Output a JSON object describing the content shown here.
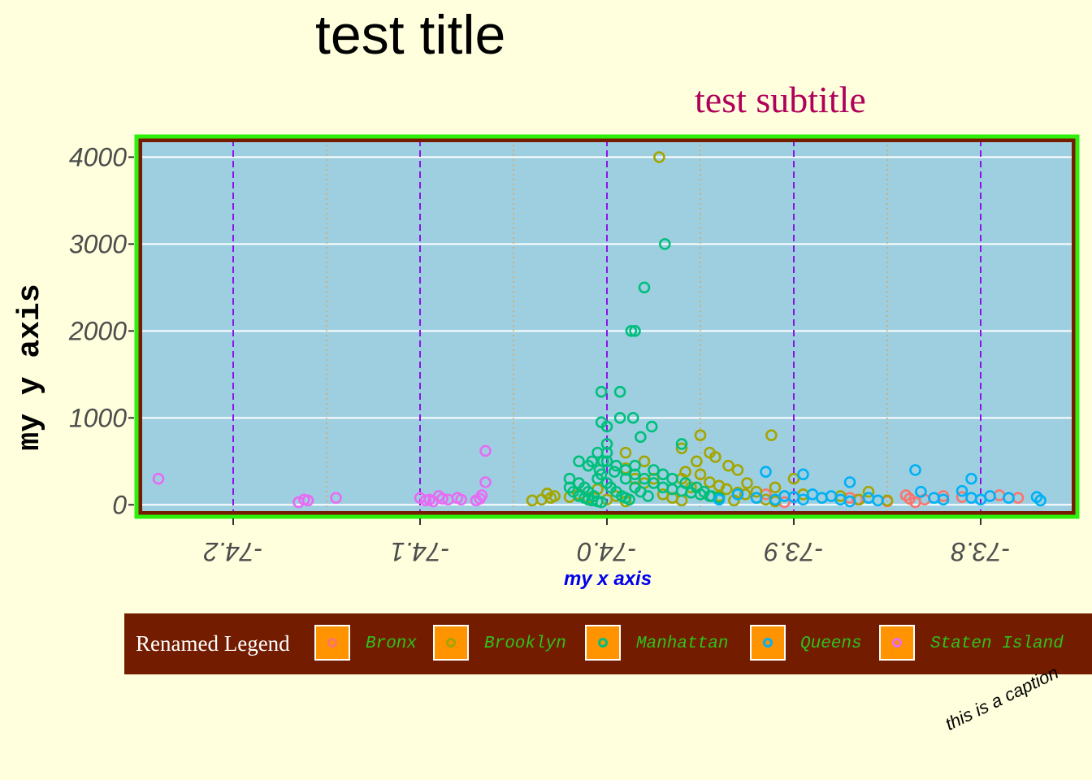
{
  "chart_data": {
    "type": "scatter",
    "title": "test title",
    "subtitle": "test subtitle",
    "xlabel": "my x axis",
    "ylabel": "my y axis",
    "caption": "this is a caption",
    "xlim": [
      -74.25,
      -73.75
    ],
    "ylim": [
      -100,
      4200
    ],
    "x_ticks": [
      -74.2,
      -74.1,
      -74.0,
      -73.9,
      -73.8
    ],
    "x_tick_labels": [
      "-74.2",
      "-74.1",
      "-74.0",
      "-73.9",
      "-73.8"
    ],
    "y_ticks": [
      0,
      1000,
      2000,
      3000,
      4000
    ],
    "y_tick_labels": [
      "0",
      "1000",
      "2000",
      "3000",
      "4000"
    ],
    "grid": true,
    "legend": {
      "title": "Renamed Legend",
      "position": "bottom"
    },
    "series": [
      {
        "name": "Bronx",
        "color": "#f8766d",
        "points": [
          [
            -73.91,
            40
          ],
          [
            -73.9,
            90
          ],
          [
            -73.87,
            80
          ],
          [
            -73.866,
            60
          ],
          [
            -73.85,
            40
          ],
          [
            -73.84,
            110
          ],
          [
            -73.838,
            70
          ],
          [
            -73.835,
            30
          ],
          [
            -73.83,
            60
          ],
          [
            -73.82,
            100
          ],
          [
            -73.81,
            90
          ],
          [
            -73.79,
            110
          ],
          [
            -73.78,
            80
          ],
          [
            -73.915,
            120
          ],
          [
            -73.905,
            30
          ]
        ]
      },
      {
        "name": "Brooklyn",
        "color": "#a3a500",
        "points": [
          [
            -73.972,
            4000
          ],
          [
            -73.95,
            800
          ],
          [
            -73.912,
            800
          ],
          [
            -73.96,
            650
          ],
          [
            -73.945,
            600
          ],
          [
            -73.952,
            500
          ],
          [
            -73.942,
            550
          ],
          [
            -73.935,
            450
          ],
          [
            -73.93,
            400
          ],
          [
            -73.98,
            500
          ],
          [
            -73.99,
            600
          ],
          [
            -73.975,
            300
          ],
          [
            -73.96,
            300
          ],
          [
            -73.955,
            200
          ],
          [
            -73.948,
            150
          ],
          [
            -73.94,
            100
          ],
          [
            -73.932,
            50
          ],
          [
            -73.925,
            250
          ],
          [
            -73.92,
            150
          ],
          [
            -73.91,
            200
          ],
          [
            -73.905,
            100
          ],
          [
            -73.9,
            300
          ],
          [
            -73.895,
            120
          ],
          [
            -73.885,
            80
          ],
          [
            -73.875,
            100
          ],
          [
            -73.865,
            60
          ],
          [
            -73.86,
            150
          ],
          [
            -73.85,
            50
          ],
          [
            -74.03,
            80
          ],
          [
            -74.032,
            130
          ],
          [
            -74.028,
            100
          ],
          [
            -74.035,
            60
          ],
          [
            -74.02,
            90
          ],
          [
            -74.015,
            120
          ],
          [
            -74.01,
            80
          ],
          [
            -74.005,
            180
          ],
          [
            -74.0,
            60
          ],
          [
            -73.995,
            100
          ],
          [
            -73.99,
            40
          ],
          [
            -73.985,
            200
          ],
          [
            -73.97,
            120
          ],
          [
            -73.965,
            80
          ],
          [
            -73.96,
            50
          ],
          [
            -73.958,
            380
          ],
          [
            -73.95,
            350
          ],
          [
            -73.945,
            260
          ],
          [
            -73.94,
            220
          ],
          [
            -73.936,
            180
          ],
          [
            -73.93,
            140
          ],
          [
            -73.926,
            120
          ],
          [
            -73.92,
            80
          ],
          [
            -73.915,
            60
          ],
          [
            -73.91,
            40
          ],
          [
            -74.04,
            50
          ],
          [
            -73.99,
            420
          ],
          [
            -73.985,
            300
          ],
          [
            -73.98,
            250
          ]
        ]
      },
      {
        "name": "Manhattan",
        "color": "#00bf7d",
        "points": [
          [
            -73.969,
            3000
          ],
          [
            -73.98,
            2500
          ],
          [
            -73.985,
            2000
          ],
          [
            -73.987,
            2000
          ],
          [
            -74.003,
            1300
          ],
          [
            -73.993,
            1300
          ],
          [
            -73.993,
            1000
          ],
          [
            -73.986,
            1000
          ],
          [
            -74.003,
            950
          ],
          [
            -74.0,
            900
          ],
          [
            -73.976,
            900
          ],
          [
            -73.982,
            780
          ],
          [
            -73.96,
            700
          ],
          [
            -74.0,
            700
          ],
          [
            -74.005,
            600
          ],
          [
            -74.008,
            500
          ],
          [
            -74.015,
            500
          ],
          [
            -74.01,
            450
          ],
          [
            -74.0,
            500
          ],
          [
            -73.995,
            450
          ],
          [
            -73.99,
            400
          ],
          [
            -73.985,
            350
          ],
          [
            -73.98,
            300
          ],
          [
            -73.975,
            250
          ],
          [
            -73.97,
            200
          ],
          [
            -73.965,
            180
          ],
          [
            -73.96,
            160
          ],
          [
            -73.955,
            140
          ],
          [
            -73.95,
            120
          ],
          [
            -73.945,
            100
          ],
          [
            -74.02,
            300
          ],
          [
            -74.015,
            250
          ],
          [
            -74.012,
            200
          ],
          [
            -74.01,
            150
          ],
          [
            -74.007,
            100
          ],
          [
            -74.005,
            300
          ],
          [
            -74.003,
            350
          ],
          [
            -74.0,
            250
          ],
          [
            -73.998,
            200
          ],
          [
            -73.995,
            150
          ],
          [
            -73.992,
            100
          ],
          [
            -73.99,
            80
          ],
          [
            -73.988,
            60
          ],
          [
            -73.985,
            200
          ],
          [
            -73.982,
            150
          ],
          [
            -73.978,
            100
          ],
          [
            -74.02,
            200
          ],
          [
            -74.018,
            150
          ],
          [
            -74.015,
            100
          ],
          [
            -74.012,
            80
          ],
          [
            -74.01,
            60
          ],
          [
            -74.008,
            50
          ],
          [
            -74.005,
            40
          ],
          [
            -74.003,
            30
          ],
          [
            -74.0,
            600
          ],
          [
            -74.002,
            500
          ],
          [
            -74.004,
            400
          ],
          [
            -73.996,
            380
          ],
          [
            -73.99,
            300
          ],
          [
            -73.985,
            450
          ],
          [
            -73.975,
            400
          ],
          [
            -73.97,
            350
          ],
          [
            -73.965,
            300
          ],
          [
            -73.958,
            250
          ],
          [
            -73.952,
            200
          ],
          [
            -73.948,
            150
          ],
          [
            -73.944,
            100
          ],
          [
            -73.94,
            80
          ]
        ]
      },
      {
        "name": "Queens",
        "color": "#00b0f6",
        "points": [
          [
            -73.915,
            380
          ],
          [
            -73.895,
            350
          ],
          [
            -73.87,
            260
          ],
          [
            -73.805,
            300
          ],
          [
            -73.835,
            400
          ],
          [
            -73.768,
            50
          ],
          [
            -73.905,
            100
          ],
          [
            -73.9,
            90
          ],
          [
            -73.895,
            60
          ],
          [
            -73.89,
            120
          ],
          [
            -73.885,
            80
          ],
          [
            -73.88,
            100
          ],
          [
            -73.875,
            60
          ],
          [
            -73.87,
            40
          ],
          [
            -73.86,
            80
          ],
          [
            -73.855,
            50
          ],
          [
            -73.832,
            150
          ],
          [
            -73.825,
            80
          ],
          [
            -73.82,
            60
          ],
          [
            -73.81,
            160
          ],
          [
            -73.805,
            80
          ],
          [
            -73.8,
            60
          ],
          [
            -73.795,
            100
          ],
          [
            -73.785,
            80
          ],
          [
            -73.77,
            90
          ],
          [
            -73.91,
            60
          ],
          [
            -73.92,
            80
          ],
          [
            -73.93,
            120
          ],
          [
            -73.94,
            60
          ]
        ]
      },
      {
        "name": "Staten Island",
        "color": "#e76bf3",
        "points": [
          [
            -74.24,
            300
          ],
          [
            -74.165,
            30
          ],
          [
            -74.162,
            60
          ],
          [
            -74.16,
            50
          ],
          [
            -74.145,
            80
          ],
          [
            -74.1,
            80
          ],
          [
            -74.097,
            50
          ],
          [
            -74.095,
            60
          ],
          [
            -74.093,
            40
          ],
          [
            -74.09,
            100
          ],
          [
            -74.088,
            70
          ],
          [
            -74.085,
            60
          ],
          [
            -74.08,
            80
          ],
          [
            -74.078,
            60
          ],
          [
            -74.065,
            620
          ],
          [
            -74.065,
            260
          ],
          [
            -74.067,
            110
          ],
          [
            -74.068,
            70
          ],
          [
            -74.07,
            50
          ]
        ]
      }
    ]
  }
}
